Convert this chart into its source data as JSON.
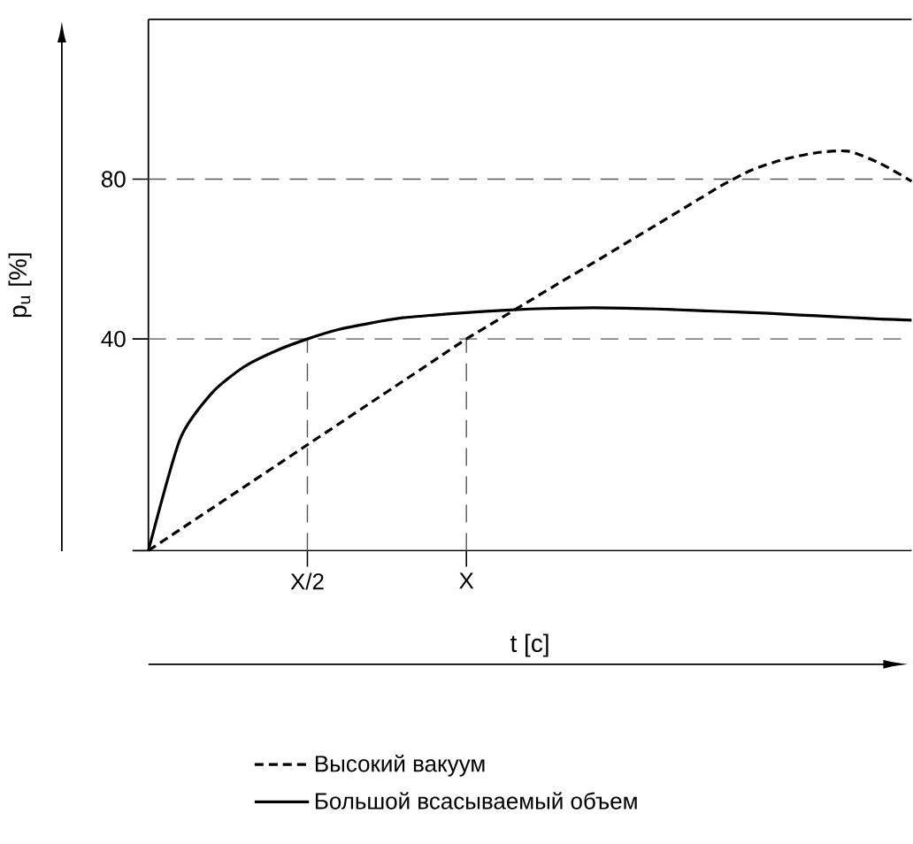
{
  "chart_data": {
    "type": "line",
    "xlabel": "t [c]",
    "ylabel": "p$_{u}$ [%]",
    "categories": [
      null,
      null,
      null,
      null,
      null,
      "X/2",
      null,
      null,
      null,
      null,
      "X",
      null,
      null,
      null,
      null,
      null,
      null,
      null,
      null,
      null,
      null,
      null,
      null,
      null,
      null
    ],
    "ylim": [
      -13,
      120
    ],
    "yticks": [
      {
        "value": -13,
        "label": null
      },
      40,
      80
    ],
    "series": [
      {
        "name": "Высокий вакуум",
        "color": "#000000",
        "line_style": "dashed",
        "values": [
          -13,
          -7.7,
          -2.4,
          2.9,
          8.2,
          13.5,
          18.8,
          24.1,
          29.4,
          34.7,
          40,
          44.8,
          49.6,
          54.4,
          59.1,
          63.9,
          68.7,
          73.5,
          78.3,
          82.4,
          85.0,
          86.6,
          87.0,
          84.0,
          79.5
        ]
      },
      {
        "name": "Большой всасываемый объем",
        "color": "#000000",
        "line_style": "solid",
        "values": [
          -13,
          15,
          26.5,
          33,
          37,
          40,
          42.4,
          44,
          45.3,
          46,
          46.6,
          47.1,
          47.5,
          47.7,
          47.8,
          47.7,
          47.5,
          47.2,
          46.9,
          46.6,
          46.2,
          45.8,
          45.4,
          45.0,
          44.7
        ]
      }
    ],
    "ref_lines": [
      {
        "axis": "y",
        "value": 40,
        "color": "#555555",
        "line_style": "dashed"
      },
      {
        "axis": "y",
        "value": 80,
        "color": "#555555",
        "line_style": "dashed"
      },
      {
        "axis": "x",
        "value": "X/2",
        "color": "#555555",
        "line_style": "dashed"
      },
      {
        "axis": "x",
        "value": "X",
        "color": "#555555",
        "line_style": "dashed"
      }
    ],
    "legend": "bottom",
    "grid": false
  }
}
